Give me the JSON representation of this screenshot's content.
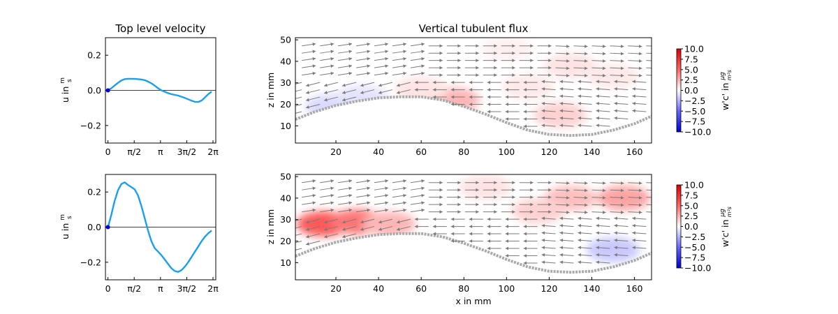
{
  "chart_data": [
    {
      "type": "line",
      "title": "Top level velocity",
      "xlabel": "",
      "ylabel": "u in m/s",
      "ylabel_parts": {
        "main": "u in ",
        "num": "m",
        "den": "s"
      },
      "xlim": [
        -0.15,
        6.45
      ],
      "ylim": [
        -0.3,
        0.3
      ],
      "xticks": [
        0,
        1.5708,
        3.1416,
        4.7124,
        6.2832
      ],
      "xtick_labels": [
        "0",
        "π/2",
        "π",
        "3π/2",
        "2π"
      ],
      "yticks": [
        -0.2,
        0.0,
        0.2
      ],
      "ytick_labels": [
        "−0.2",
        "0.0",
        "0.2"
      ],
      "zero_line": true,
      "marker_point": {
        "x": 0,
        "y": 0
      },
      "series_color": "#1a9ef2",
      "series": [
        {
          "x": [
            0,
            0.2,
            0.4,
            0.6,
            0.8,
            1.0,
            1.2,
            1.4,
            1.6,
            1.8,
            2.0,
            2.2,
            2.4,
            2.6,
            2.8,
            3.0,
            3.2,
            3.4,
            3.6,
            3.8,
            4.0,
            4.2,
            4.4,
            4.6,
            4.8,
            5.0,
            5.2,
            5.4,
            5.6,
            5.8,
            6.0,
            6.2
          ],
          "y": [
            0.0,
            0.012,
            0.028,
            0.043,
            0.056,
            0.064,
            0.066,
            0.066,
            0.065,
            0.064,
            0.062,
            0.058,
            0.05,
            0.04,
            0.027,
            0.012,
            0.0,
            -0.008,
            -0.016,
            -0.022,
            -0.026,
            -0.03,
            -0.036,
            -0.043,
            -0.051,
            -0.059,
            -0.065,
            -0.066,
            -0.058,
            -0.04,
            -0.022,
            -0.007
          ]
        }
      ]
    },
    {
      "type": "quiver-heatmap",
      "title": "Vertical tubulent flux",
      "xlabel": "",
      "ylabel": "z in mm",
      "xlim": [
        1,
        168
      ],
      "ylim": [
        2,
        51
      ],
      "xticks": [
        20,
        40,
        60,
        80,
        100,
        120,
        140,
        160
      ],
      "yticks": [
        10,
        20,
        30,
        40,
        50
      ],
      "bed_profile": {
        "x": [
          1,
          10,
          20,
          30,
          40,
          50,
          60,
          70,
          80,
          90,
          100,
          110,
          120,
          130,
          140,
          150,
          160,
          168
        ],
        "z": [
          13,
          16.5,
          19.5,
          21.5,
          23,
          23.5,
          23.5,
          22,
          19,
          15.5,
          11.5,
          8,
          6,
          5.5,
          6,
          8,
          11,
          14.5
        ]
      },
      "flux_regions": [
        {
          "x": 130,
          "z": 38,
          "value": 1.5
        },
        {
          "x": 150,
          "z": 33,
          "value": 1.2
        },
        {
          "x": 100,
          "z": 46,
          "value": 0.8
        },
        {
          "x": 110,
          "z": 28,
          "value": 1.2
        },
        {
          "x": 125,
          "z": 15,
          "value": 2.5
        },
        {
          "x": 75,
          "z": 22,
          "value": 4
        },
        {
          "x": 60,
          "z": 27,
          "value": 1.5
        },
        {
          "x": 18,
          "z": 19,
          "value": -2
        },
        {
          "x": 32,
          "z": 23,
          "value": -1.5
        }
      ],
      "arrow_field": "rows: z<32 flow left, z>32 flow right",
      "colorbar": {
        "label": "w'c' in μg/(m²s)",
        "label_parts": {
          "main": "w'c' in ",
          "num": "μg",
          "den": "m²s"
        },
        "ticks": [
          "10.0",
          "7.5",
          "5.0",
          "2.5",
          "0.0",
          "−2.5",
          "−5.0",
          "−7.5",
          "−10.0"
        ],
        "vmin": -10,
        "vmax": 10
      }
    },
    {
      "type": "line",
      "title": "",
      "xlabel": "",
      "ylabel": "u in m/s",
      "ylabel_parts": {
        "main": "u in ",
        "num": "m",
        "den": "s"
      },
      "xlim": [
        -0.15,
        6.45
      ],
      "ylim": [
        -0.3,
        0.3
      ],
      "xticks": [
        0,
        1.5708,
        3.1416,
        4.7124,
        6.2832
      ],
      "xtick_labels": [
        "0",
        "π/2",
        "π",
        "3π/2",
        "2π"
      ],
      "yticks": [
        -0.2,
        0.0,
        0.2
      ],
      "ytick_labels": [
        "−0.2",
        "0.0",
        "0.2"
      ],
      "zero_line": true,
      "marker_point": {
        "x": 0,
        "y": 0
      },
      "series_color": "#1a9ef2",
      "series": [
        {
          "x": [
            0,
            0.2,
            0.4,
            0.6,
            0.8,
            1.0,
            1.2,
            1.4,
            1.6,
            1.8,
            2.0,
            2.2,
            2.4,
            2.6,
            2.8,
            3.0,
            3.2,
            3.4,
            3.6,
            3.8,
            4.0,
            4.2,
            4.4,
            4.6,
            4.8,
            5.0,
            5.2,
            5.4,
            5.6,
            5.8,
            6.0,
            6.2
          ],
          "y": [
            0.0,
            0.07,
            0.15,
            0.21,
            0.245,
            0.255,
            0.24,
            0.228,
            0.215,
            0.18,
            0.12,
            0.05,
            -0.02,
            -0.08,
            -0.12,
            -0.14,
            -0.16,
            -0.185,
            -0.21,
            -0.235,
            -0.25,
            -0.255,
            -0.245,
            -0.225,
            -0.2,
            -0.17,
            -0.14,
            -0.11,
            -0.08,
            -0.055,
            -0.035,
            -0.02
          ]
        }
      ]
    },
    {
      "type": "quiver-heatmap",
      "title": "",
      "xlabel": "x in mm",
      "ylabel": "z in mm",
      "xlim": [
        1,
        168
      ],
      "ylim": [
        2,
        51
      ],
      "xticks": [
        20,
        40,
        60,
        80,
        100,
        120,
        140,
        160
      ],
      "yticks": [
        10,
        20,
        30,
        40,
        50
      ],
      "bed_profile": {
        "x": [
          1,
          10,
          20,
          30,
          40,
          50,
          60,
          70,
          80,
          90,
          100,
          110,
          120,
          130,
          140,
          150,
          160,
          168
        ],
        "z": [
          13,
          16.5,
          19.5,
          21.5,
          23,
          23.5,
          23.5,
          22,
          19,
          15.5,
          11.5,
          8,
          6,
          5.5,
          6,
          8,
          11,
          14.5
        ]
      },
      "flux_regions": [
        {
          "x": 14,
          "z": 28,
          "value": 9
        },
        {
          "x": 30,
          "z": 29,
          "value": 7.5
        },
        {
          "x": 45,
          "z": 28,
          "value": 4
        },
        {
          "x": 130,
          "z": 40,
          "value": 3.5
        },
        {
          "x": 155,
          "z": 40,
          "value": 5
        },
        {
          "x": 115,
          "z": 34,
          "value": 2.5
        },
        {
          "x": 90,
          "z": 45,
          "value": 1.5
        },
        {
          "x": 150,
          "z": 16,
          "value": -3
        }
      ],
      "arrow_field": "rows: z<32 flow left, z>32 flow right",
      "colorbar": {
        "label": "w'c' in μg/(m²s)",
        "label_parts": {
          "main": "w'c' in ",
          "num": "μg",
          "den": "m²s"
        },
        "ticks": [
          "10.0",
          "7.5",
          "5.0",
          "2.5",
          "0.0",
          "−2.5",
          "−5.0",
          "−7.5",
          "−10.0"
        ],
        "vmin": -10,
        "vmax": 10
      }
    }
  ]
}
